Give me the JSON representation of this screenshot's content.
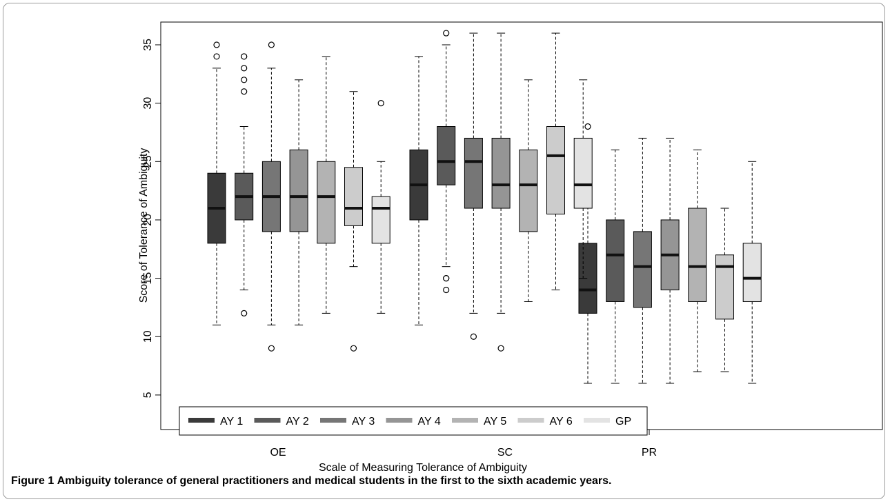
{
  "caption": {
    "label": "Figure 1",
    "text": "Ambiguity tolerance of general practitioners and medical students in the first to the sixth academic years."
  },
  "chart_data": {
    "type": "boxplot",
    "xlabel": "Scale of Measuring Tolerance of Ambiguity",
    "ylabel": "Score of Tolerance of Ambiguity",
    "ylim": [
      5,
      36.5
    ],
    "y_ticks": [
      5,
      10,
      15,
      20,
      25,
      30,
      35
    ],
    "categories": [
      "OE",
      "SC",
      "PR"
    ],
    "legend": {
      "position": "bottom-left",
      "entries": [
        {
          "label": "AY 1",
          "color": "#3a3a3a"
        },
        {
          "label": "AY 2",
          "color": "#5a5a5a"
        },
        {
          "label": "AY 3",
          "color": "#767676"
        },
        {
          "label": "AY 4",
          "color": "#959595"
        },
        {
          "label": "AY 5",
          "color": "#b3b3b3"
        },
        {
          "label": "AY 6",
          "color": "#cccccc"
        },
        {
          "label": "GP",
          "color": "#e3e3e3"
        }
      ]
    },
    "series": [
      {
        "name": "AY 1",
        "boxes": [
          {
            "category": "OE",
            "min": 11,
            "q1": 18,
            "median": 21,
            "q3": 24,
            "max": 33,
            "outliers": [
              34,
              35
            ]
          },
          {
            "category": "SC",
            "min": 11,
            "q1": 20,
            "median": 23,
            "q3": 26,
            "max": 34,
            "outliers": []
          },
          {
            "category": "PR",
            "min": 6,
            "q1": 12,
            "median": 14,
            "q3": 18,
            "max": 26,
            "outliers": [
              28
            ]
          }
        ]
      },
      {
        "name": "AY 2",
        "boxes": [
          {
            "category": "OE",
            "min": 14,
            "q1": 20,
            "median": 22,
            "q3": 24,
            "max": 28,
            "outliers": [
              12,
              31,
              32,
              33,
              34,
              34
            ]
          },
          {
            "category": "SC",
            "min": 16,
            "q1": 23,
            "median": 25,
            "q3": 28,
            "max": 35,
            "outliers": [
              14,
              15,
              15,
              36
            ]
          },
          {
            "category": "PR",
            "min": 6,
            "q1": 13,
            "median": 17,
            "q3": 20,
            "max": 26,
            "outliers": []
          }
        ]
      },
      {
        "name": "AY 3",
        "boxes": [
          {
            "category": "OE",
            "min": 11,
            "q1": 19,
            "median": 22,
            "q3": 25,
            "max": 33,
            "outliers": [
              9,
              35
            ]
          },
          {
            "category": "SC",
            "min": 12,
            "q1": 21,
            "median": 25,
            "q3": 27,
            "max": 36,
            "outliers": [
              10
            ]
          },
          {
            "category": "PR",
            "min": 6,
            "q1": 12.5,
            "median": 16,
            "q3": 19,
            "max": 27,
            "outliers": []
          }
        ]
      },
      {
        "name": "AY 4",
        "boxes": [
          {
            "category": "OE",
            "min": 11,
            "q1": 19,
            "median": 22,
            "q3": 26,
            "max": 32,
            "outliers": []
          },
          {
            "category": "SC",
            "min": 12,
            "q1": 21,
            "median": 23,
            "q3": 27,
            "max": 36,
            "outliers": [
              9
            ]
          },
          {
            "category": "PR",
            "min": 6,
            "q1": 14,
            "median": 17,
            "q3": 20,
            "max": 27,
            "outliers": []
          }
        ]
      },
      {
        "name": "AY 5",
        "boxes": [
          {
            "category": "OE",
            "min": 12,
            "q1": 18,
            "median": 22,
            "q3": 25,
            "max": 34,
            "outliers": []
          },
          {
            "category": "SC",
            "min": 13,
            "q1": 19,
            "median": 23,
            "q3": 26,
            "max": 32,
            "outliers": []
          },
          {
            "category": "PR",
            "min": 7,
            "q1": 13,
            "median": 16,
            "q3": 21,
            "max": 26,
            "outliers": []
          }
        ]
      },
      {
        "name": "AY 6",
        "boxes": [
          {
            "category": "OE",
            "min": 16,
            "q1": 19.5,
            "median": 21,
            "q3": 24.5,
            "max": 31,
            "outliers": [
              9
            ]
          },
          {
            "category": "SC",
            "min": 14,
            "q1": 20.5,
            "median": 25.5,
            "q3": 28,
            "max": 36,
            "outliers": []
          },
          {
            "category": "PR",
            "min": 7,
            "q1": 11.5,
            "median": 16,
            "q3": 17,
            "max": 21,
            "outliers": []
          }
        ]
      },
      {
        "name": "GP",
        "boxes": [
          {
            "category": "OE",
            "min": 12,
            "q1": 18,
            "median": 21,
            "q3": 22,
            "max": 25,
            "outliers": [
              30
            ]
          },
          {
            "category": "SC",
            "min": 15,
            "q1": 21,
            "median": 23,
            "q3": 27,
            "max": 32,
            "outliers": []
          },
          {
            "category": "PR",
            "min": 6,
            "q1": 13,
            "median": 15,
            "q3": 18,
            "max": 25,
            "outliers": []
          }
        ]
      }
    ]
  }
}
